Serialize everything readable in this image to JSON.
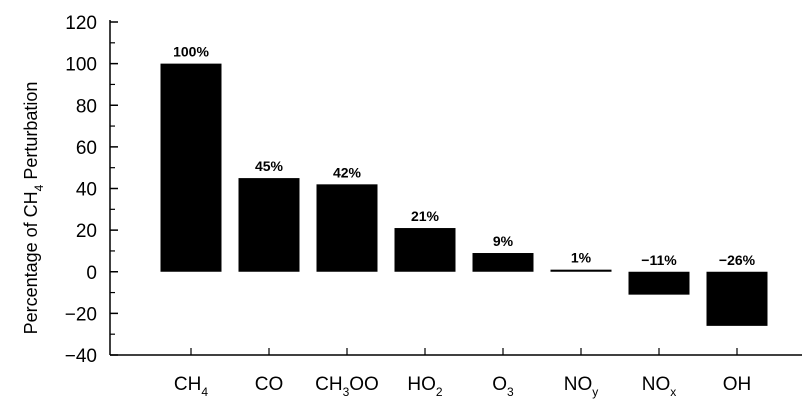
{
  "chart_data": {
    "type": "bar",
    "title": "",
    "xlabel": "",
    "ylabel": {
      "pre": "Percentage of CH",
      "sub": "4",
      "post": " Perturbation"
    },
    "ylim": [
      -40,
      120
    ],
    "yticks": [
      -40,
      -20,
      0,
      20,
      40,
      60,
      80,
      100,
      120
    ],
    "ytick_labels": [
      "−40",
      "−20",
      "0",
      "20",
      "40",
      "60",
      "80",
      "100",
      "120"
    ],
    "grid": false,
    "bar_color": "#000000",
    "categories": [
      {
        "base": "CH",
        "sub": "4",
        "post": ""
      },
      {
        "base": "CO",
        "sub": "",
        "post": ""
      },
      {
        "base": "CH",
        "sub": "3",
        "post": "OO"
      },
      {
        "base": "HO",
        "sub": "2",
        "post": ""
      },
      {
        "base": "O",
        "sub": "3",
        "post": ""
      },
      {
        "base": "NO",
        "sub": "y",
        "post": ""
      },
      {
        "base": "NO",
        "sub": "x",
        "post": ""
      },
      {
        "base": "OH",
        "sub": "",
        "post": ""
      }
    ],
    "values": [
      100,
      45,
      42,
      21,
      9,
      1,
      -11,
      -26
    ],
    "data_labels": [
      "100%",
      "45%",
      "42%",
      "21%",
      "9%",
      "1%",
      "−11%",
      "−26%"
    ]
  }
}
